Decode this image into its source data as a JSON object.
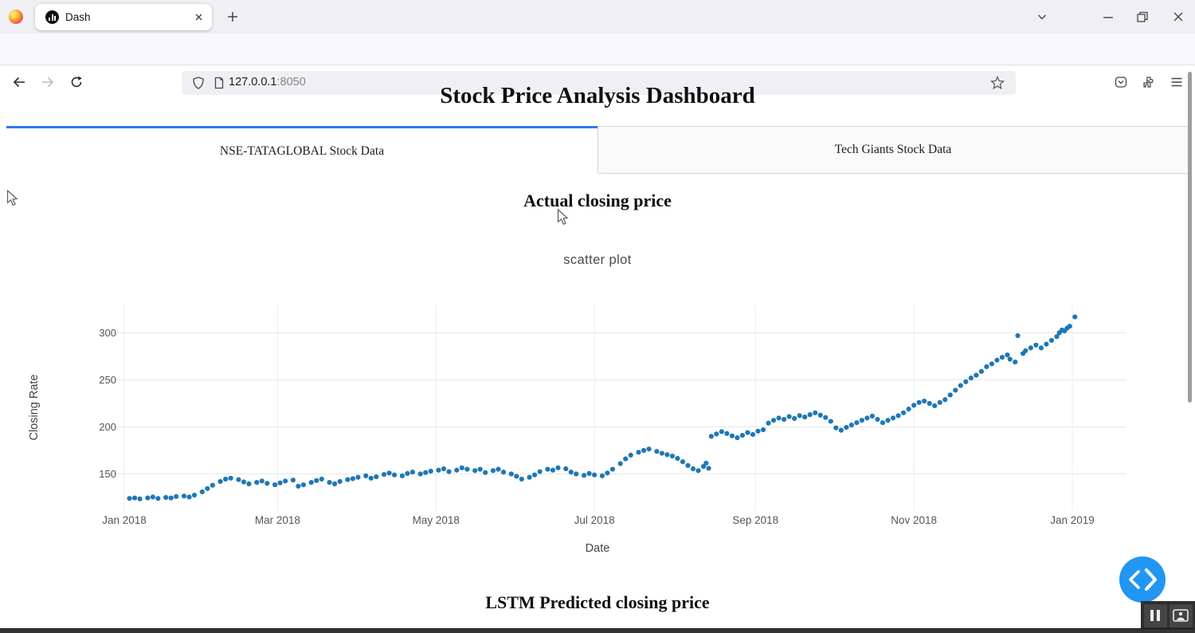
{
  "browser": {
    "tab_title": "Dash",
    "url": {
      "host": "127.0.0.1",
      "port": ":8050"
    }
  },
  "page": {
    "title": "Stock Price Analysis Dashboard",
    "tabs": [
      {
        "label": "NSE-TATAGLOBAL Stock Data",
        "selected": true
      },
      {
        "label": "Tech Giants Stock Data",
        "selected": false
      }
    ],
    "heading_actual": "Actual closing price",
    "heading_lstm": "LSTM Predicted closing price"
  },
  "chart_data": {
    "type": "scatter",
    "title": "scatter plot",
    "xlabel": "Date",
    "ylabel": "Closing Rate",
    "x_tick_labels": [
      "Jan 2018",
      "Mar 2018",
      "May 2018",
      "Jul 2018",
      "Sep 2018",
      "Nov 2018",
      "Jan 2019"
    ],
    "x_tick_day_offsets": [
      0,
      59,
      120,
      181,
      243,
      304,
      365
    ],
    "y_ticks": [
      150,
      200,
      250,
      300
    ],
    "ylim": [
      110,
      330
    ],
    "xlim_days": [
      -14,
      380
    ],
    "grid": true,
    "legend": false,
    "marker_color": "#1f77b4",
    "series_name": "Closing Rate",
    "points_day_value": [
      [
        2,
        124
      ],
      [
        4,
        124.5
      ],
      [
        6,
        123.5
      ],
      [
        9,
        124.5
      ],
      [
        11,
        125.5
      ],
      [
        13,
        124
      ],
      [
        16,
        125
      ],
      [
        18,
        124.5
      ],
      [
        20,
        126
      ],
      [
        23,
        126.5
      ],
      [
        25,
        125.5
      ],
      [
        27,
        127.5
      ],
      [
        30,
        131
      ],
      [
        32,
        134.5
      ],
      [
        34,
        138
      ],
      [
        37,
        142
      ],
      [
        39,
        144.5
      ],
      [
        41,
        145.5
      ],
      [
        44,
        144
      ],
      [
        46,
        141.5
      ],
      [
        48,
        139.5
      ],
      [
        51,
        141
      ],
      [
        53,
        142.5
      ],
      [
        55,
        140
      ],
      [
        58,
        138.5
      ],
      [
        60,
        140.5
      ],
      [
        62,
        142.5
      ],
      [
        65,
        143.5
      ],
      [
        67,
        137
      ],
      [
        69,
        138.5
      ],
      [
        72,
        141
      ],
      [
        74,
        143
      ],
      [
        76,
        144.5
      ],
      [
        79,
        141
      ],
      [
        81,
        139.5
      ],
      [
        83,
        142
      ],
      [
        86,
        144
      ],
      [
        88,
        145
      ],
      [
        90,
        146.5
      ],
      [
        93,
        148
      ],
      [
        95,
        145.5
      ],
      [
        97,
        147
      ],
      [
        100,
        149.5
      ],
      [
        102,
        151
      ],
      [
        104,
        149
      ],
      [
        107,
        148
      ],
      [
        109,
        150.5
      ],
      [
        111,
        152
      ],
      [
        114,
        150
      ],
      [
        116,
        151.5
      ],
      [
        118,
        153
      ],
      [
        121,
        154
      ],
      [
        123,
        155.5
      ],
      [
        125,
        152.5
      ],
      [
        128,
        154
      ],
      [
        130,
        156.5
      ],
      [
        132,
        155
      ],
      [
        135,
        153.5
      ],
      [
        137,
        155
      ],
      [
        139,
        151.5
      ],
      [
        142,
        153.5
      ],
      [
        144,
        155
      ],
      [
        146,
        152
      ],
      [
        149,
        150
      ],
      [
        151,
        147.5
      ],
      [
        153,
        144.5
      ],
      [
        156,
        146.5
      ],
      [
        158,
        149
      ],
      [
        160,
        152.5
      ],
      [
        163,
        155
      ],
      [
        165,
        154
      ],
      [
        167,
        156.5
      ],
      [
        170,
        155.5
      ],
      [
        172,
        152
      ],
      [
        174,
        150
      ],
      [
        177,
        148.5
      ],
      [
        179,
        150.5
      ],
      [
        181,
        149
      ],
      [
        184,
        148
      ],
      [
        186,
        151
      ],
      [
        188,
        155
      ],
      [
        191,
        161
      ],
      [
        193,
        166
      ],
      [
        195,
        170
      ],
      [
        198,
        173
      ],
      [
        200,
        175
      ],
      [
        202,
        176.5
      ],
      [
        205,
        174
      ],
      [
        207,
        172
      ],
      [
        209,
        170.5
      ],
      [
        211,
        169
      ],
      [
        213,
        166.5
      ],
      [
        215,
        163
      ],
      [
        217,
        159
      ],
      [
        219,
        155.5
      ],
      [
        221,
        153.5
      ],
      [
        223,
        158
      ],
      [
        224,
        161.5
      ],
      [
        225,
        156
      ],
      [
        226,
        190
      ],
      [
        228,
        192.5
      ],
      [
        230,
        195
      ],
      [
        232,
        193
      ],
      [
        234,
        190.5
      ],
      [
        236,
        188.5
      ],
      [
        238,
        191
      ],
      [
        240,
        194
      ],
      [
        242,
        192
      ],
      [
        244,
        195.5
      ],
      [
        246,
        197
      ],
      [
        248,
        204
      ],
      [
        250,
        207
      ],
      [
        252,
        209.5
      ],
      [
        254,
        208
      ],
      [
        256,
        211
      ],
      [
        258,
        209
      ],
      [
        260,
        212
      ],
      [
        262,
        210.5
      ],
      [
        264,
        213
      ],
      [
        266,
        215
      ],
      [
        268,
        212.5
      ],
      [
        270,
        210
      ],
      [
        272,
        206
      ],
      [
        274,
        199
      ],
      [
        276,
        196.5
      ],
      [
        278,
        199.5
      ],
      [
        280,
        202
      ],
      [
        282,
        204.5
      ],
      [
        284,
        207
      ],
      [
        286,
        209.5
      ],
      [
        288,
        211.5
      ],
      [
        290,
        208
      ],
      [
        292,
        204.5
      ],
      [
        294,
        207
      ],
      [
        296,
        209.5
      ],
      [
        298,
        212
      ],
      [
        300,
        215
      ],
      [
        302,
        219
      ],
      [
        304,
        223
      ],
      [
        306,
        226
      ],
      [
        308,
        227.5
      ],
      [
        310,
        225
      ],
      [
        312,
        222.5
      ],
      [
        314,
        226
      ],
      [
        316,
        229
      ],
      [
        318,
        234
      ],
      [
        320,
        239
      ],
      [
        322,
        244
      ],
      [
        324,
        248
      ],
      [
        326,
        252
      ],
      [
        328,
        255
      ],
      [
        330,
        259
      ],
      [
        332,
        264
      ],
      [
        334,
        267
      ],
      [
        336,
        271
      ],
      [
        338,
        274
      ],
      [
        340,
        276.5
      ],
      [
        341,
        272
      ],
      [
        343,
        269
      ],
      [
        344,
        297
      ],
      [
        346,
        278
      ],
      [
        347,
        281
      ],
      [
        349,
        284
      ],
      [
        351,
        287
      ],
      [
        353,
        284
      ],
      [
        355,
        288
      ],
      [
        357,
        292
      ],
      [
        359,
        296
      ],
      [
        360,
        300
      ],
      [
        361,
        303
      ],
      [
        362,
        302
      ],
      [
        363,
        305
      ],
      [
        364,
        307
      ],
      [
        366,
        317
      ]
    ]
  },
  "colors": {
    "tab_accent": "#2e7bf3",
    "fab_blue": "#2196f3",
    "marker_blue": "#1f77b4",
    "gridline": "#e7e7e7",
    "tick_text": "#545454"
  }
}
